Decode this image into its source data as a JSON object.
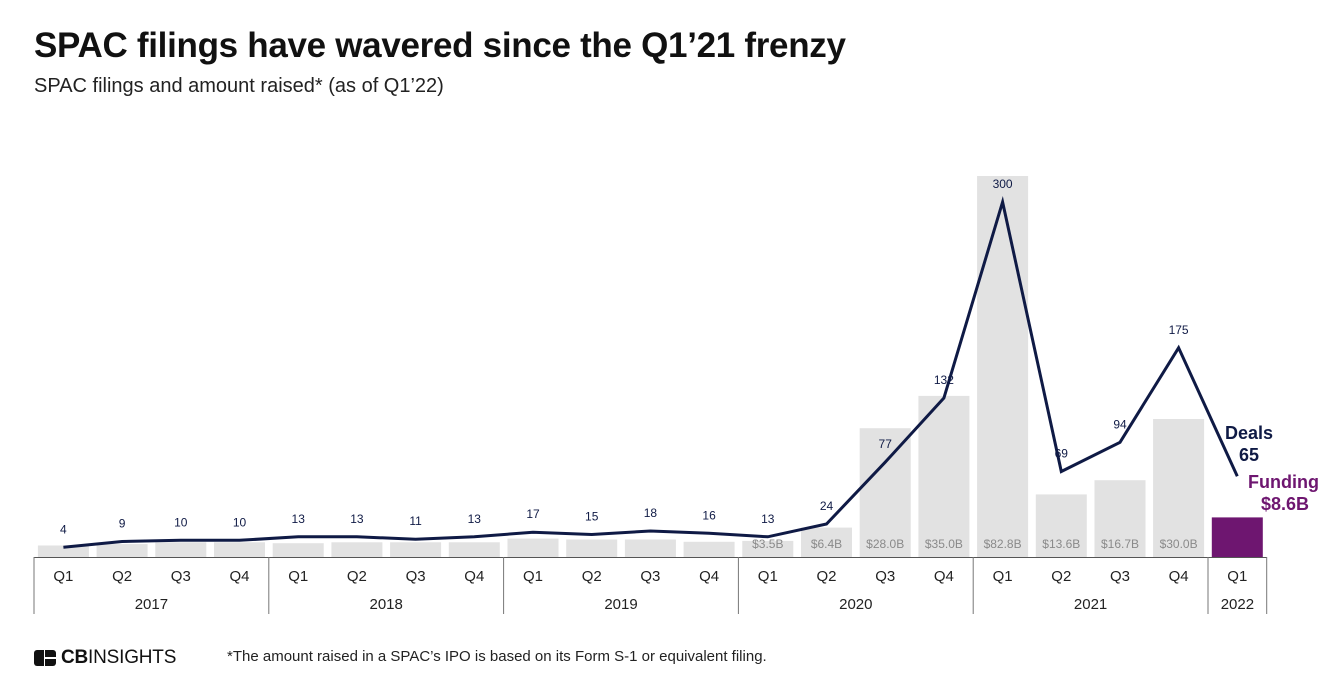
{
  "header": {
    "title": "SPAC filings have wavered since the Q1’21 frenzy",
    "subtitle": "SPAC filings and amount raised* (as of Q1’22)"
  },
  "chart_data": {
    "type": "bar",
    "title": "SPAC filings have wavered since the Q1’21 frenzy",
    "subtitle": "SPAC filings and amount raised* (as of Q1’22)",
    "categories": [
      "Q1",
      "Q2",
      "Q3",
      "Q4",
      "Q1",
      "Q2",
      "Q3",
      "Q4",
      "Q1",
      "Q2",
      "Q3",
      "Q4",
      "Q1",
      "Q2",
      "Q3",
      "Q4",
      "Q1",
      "Q2",
      "Q3",
      "Q4",
      "Q1"
    ],
    "years": [
      {
        "label": "2017",
        "quarters": 4
      },
      {
        "label": "2018",
        "quarters": 4
      },
      {
        "label": "2019",
        "quarters": 4
      },
      {
        "label": "2020",
        "quarters": 4
      },
      {
        "label": "2021",
        "quarters": 4
      },
      {
        "label": "2022",
        "quarters": 1
      }
    ],
    "series": [
      {
        "name": "Funding",
        "type": "bar",
        "unit": "$B",
        "values": [
          2.5,
          2.8,
          3.2,
          3.2,
          3.0,
          3.2,
          3.2,
          3.2,
          4.0,
          3.8,
          3.8,
          3.3,
          3.5,
          6.4,
          28.0,
          35.0,
          82.8,
          13.6,
          16.7,
          30.0,
          8.6
        ],
        "labels": [
          "",
          "",
          "",
          "",
          "",
          "",
          "",
          "",
          "",
          "",
          "",
          "",
          "$3.5B",
          "$6.4B",
          "$28.0B",
          "$35.0B",
          "$82.8B",
          "$13.6B",
          "$16.7B",
          "$30.0B",
          ""
        ],
        "color": "#e2e2e2",
        "highlight_color": "#6e1670",
        "ylim": [
          0,
          82.8
        ]
      },
      {
        "name": "Deals",
        "type": "line",
        "values": [
          4,
          9,
          10,
          10,
          13,
          13,
          11,
          13,
          17,
          15,
          18,
          16,
          13,
          24,
          77,
          132,
          300,
          69,
          94,
          175,
          65
        ],
        "color": "#0f1a45",
        "ylim": [
          0,
          300
        ]
      }
    ],
    "annotations": {
      "deals_label": "Deals",
      "deals_value": "65",
      "funding_label": "Funding",
      "funding_value": "$8.6B"
    },
    "legend": "inline-right"
  },
  "footer": {
    "logo_bold": "CB",
    "logo_rest": "INSIGHTS",
    "footnote": "*The amount raised in a SPAC’s IPO is based on its Form S-1 or equivalent filing."
  }
}
